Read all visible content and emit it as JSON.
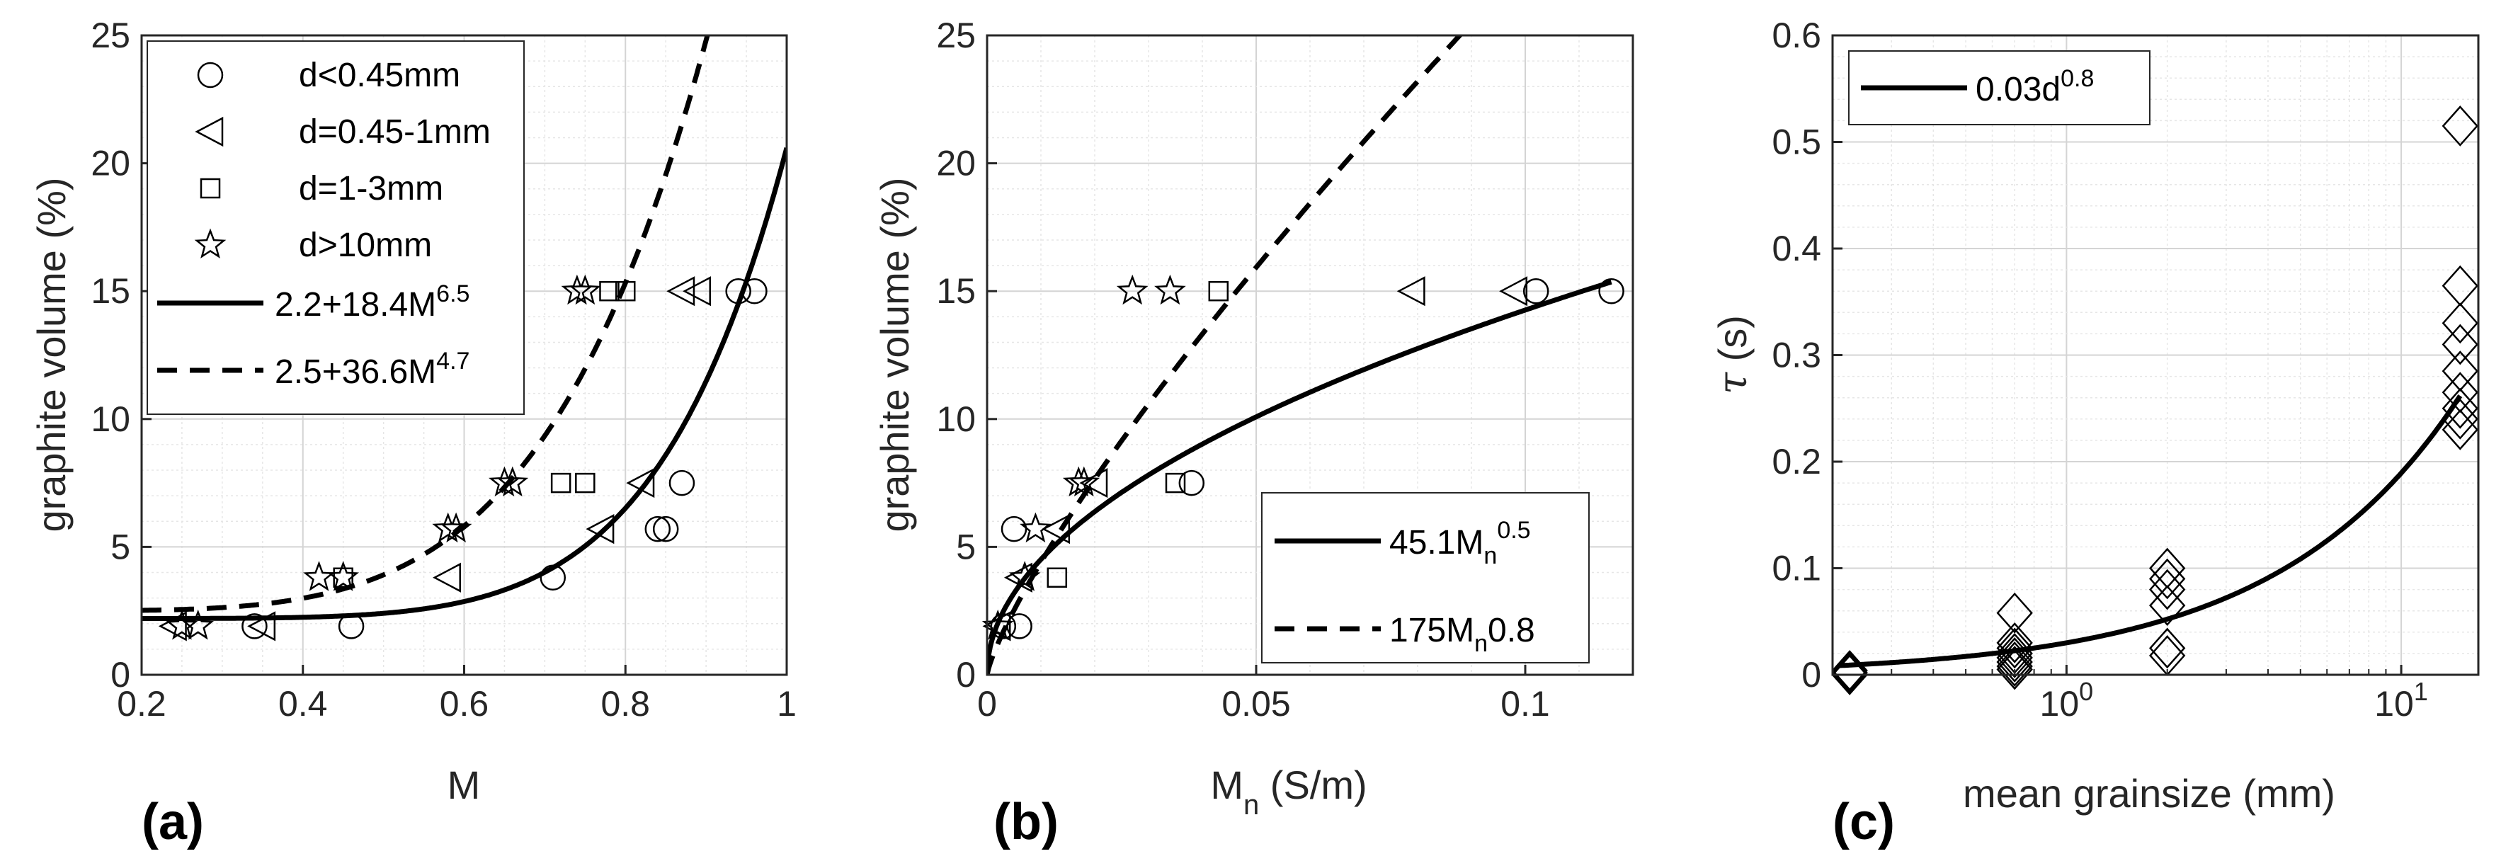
{
  "chart_data": [
    {
      "panel_label": "(a)",
      "type": "scatter",
      "xlabel": "M",
      "ylabel": "graphite volume (%)",
      "xlim": [
        0.2,
        1.0
      ],
      "ylim": [
        0,
        25
      ],
      "xticks": [
        0.2,
        0.4,
        0.6,
        0.8,
        1
      ],
      "xtick_labels": [
        "0.2",
        "0.4",
        "0.6",
        "0.8",
        "1"
      ],
      "yticks": [
        0,
        5,
        10,
        15,
        20,
        25
      ],
      "ytick_labels": [
        "0",
        "5",
        "10",
        "15",
        "20",
        "25"
      ],
      "grid": true,
      "legend_position": "top-left",
      "series": [
        {
          "name": "d<0.45mm",
          "marker": "circle",
          "x": [
            0.34,
            0.46,
            0.71,
            0.84,
            0.85,
            0.87,
            0.94,
            0.96
          ],
          "y": [
            1.9,
            1.9,
            3.8,
            5.7,
            5.7,
            7.5,
            15.0,
            15.0
          ]
        },
        {
          "name": "d=0.45-1mm",
          "marker": "triangle-left",
          "x": [
            0.24,
            0.35,
            0.58,
            0.77,
            0.82,
            0.87,
            0.89
          ],
          "y": [
            1.9,
            1.9,
            3.8,
            5.7,
            7.5,
            15.0,
            15.0
          ]
        },
        {
          "name": "d=1-3mm",
          "marker": "square",
          "x": [
            0.45,
            0.72,
            0.75,
            0.78,
            0.8
          ],
          "y": [
            3.8,
            7.5,
            7.5,
            15.0,
            15.0
          ]
        },
        {
          "name": "d>10mm",
          "marker": "star",
          "x": [
            0.25,
            0.27,
            0.42,
            0.45,
            0.58,
            0.59,
            0.65,
            0.66,
            0.74,
            0.75
          ],
          "y": [
            1.9,
            1.9,
            3.8,
            3.8,
            5.7,
            5.7,
            7.5,
            7.5,
            15.0,
            15.0
          ]
        }
      ],
      "fits": [
        {
          "label_parts": [
            "2.2+18.4M",
            "6.5"
          ],
          "style": "solid",
          "a": 2.2,
          "b": 18.4,
          "p": 6.5
        },
        {
          "label_parts": [
            "2.5+36.6M",
            "4.7"
          ],
          "style": "dashed",
          "a": 2.5,
          "b": 36.6,
          "p": 4.7
        }
      ]
    },
    {
      "panel_label": "(b)",
      "type": "scatter",
      "xlabel_parts": [
        "M",
        "n",
        " (S/m)"
      ],
      "ylabel": "graphite volume (%)",
      "xlim": [
        0,
        0.12
      ],
      "ylim": [
        0,
        25
      ],
      "xticks": [
        0,
        0.05,
        0.1
      ],
      "xtick_labels": [
        "0",
        "0.05",
        "0.1"
      ],
      "yticks": [
        0,
        5,
        10,
        15,
        20,
        25
      ],
      "ytick_labels": [
        "0",
        "5",
        "10",
        "15",
        "20",
        "25"
      ],
      "grid": true,
      "legend_position": "bottom-right",
      "series": [
        {
          "name": "d<0.45mm",
          "marker": "circle",
          "x": [
            0.003,
            0.006,
            0.005,
            0.038,
            0.102,
            0.116
          ],
          "y": [
            1.9,
            1.9,
            5.7,
            7.5,
            15.0,
            15.0
          ]
        },
        {
          "name": "d=0.45-1mm",
          "marker": "triangle-left",
          "x": [
            0.002,
            0.006,
            0.013,
            0.02,
            0.079,
            0.098
          ],
          "y": [
            1.9,
            3.8,
            5.7,
            7.5,
            15.0,
            15.0
          ]
        },
        {
          "name": "d=1-3mm",
          "marker": "square",
          "x": [
            0.013,
            0.035,
            0.043
          ],
          "y": [
            3.8,
            7.5,
            15.0
          ]
        },
        {
          "name": "d>10mm",
          "marker": "star",
          "x": [
            0.002,
            0.007,
            0.009,
            0.017,
            0.018,
            0.027,
            0.034
          ],
          "y": [
            1.9,
            3.8,
            5.7,
            7.5,
            7.5,
            15.0,
            15.0
          ]
        }
      ],
      "fits": [
        {
          "label_parts": [
            "45.1M",
            "n",
            "0.5"
          ],
          "style": "solid",
          "c": 45.1,
          "p": 0.5
        },
        {
          "label_parts": [
            "175M",
            "n",
            "0.8"
          ],
          "style": "dashed",
          "c": 175,
          "p": 0.8
        }
      ]
    },
    {
      "panel_label": "(c)",
      "type": "scatter",
      "xlabel": "mean grainsize (mm)",
      "ylabel_parts": [
        "τ",
        " (s)"
      ],
      "xscale": "log",
      "xlim": [
        0.2,
        17
      ],
      "ylim": [
        0,
        0.6
      ],
      "xticks": [
        1,
        10
      ],
      "xtick_labels": [
        [
          "10",
          "0"
        ],
        [
          "10",
          "1"
        ]
      ],
      "yticks": [
        0,
        0.1,
        0.2,
        0.3,
        0.4,
        0.5,
        0.6
      ],
      "ytick_labels": [
        "0",
        "0.1",
        "0.2",
        "0.3",
        "0.4",
        "0.5",
        "0.6"
      ],
      "grid": true,
      "legend_position": "top-left",
      "series": [
        {
          "marker": "diamond",
          "x": [
            0.225,
            0.225,
            0.225,
            0.7,
            0.7,
            0.7,
            0.7,
            0.7,
            0.7,
            0.7,
            0.7,
            2,
            2,
            2,
            2,
            2,
            2,
            15,
            15,
            15,
            15,
            15,
            15,
            15,
            15,
            15
          ],
          "y": [
            0.0,
            0.002,
            0.004,
            0.058,
            0.03,
            0.025,
            0.02,
            0.016,
            0.012,
            0.008,
            0.005,
            0.1,
            0.09,
            0.08,
            0.065,
            0.025,
            0.018,
            0.515,
            0.365,
            0.33,
            0.31,
            0.285,
            0.265,
            0.25,
            0.24,
            0.23
          ]
        }
      ],
      "fits": [
        {
          "label_parts": [
            "0.03d",
            "0.8"
          ],
          "style": "solid",
          "c": 0.03,
          "p": 0.8
        }
      ]
    }
  ]
}
